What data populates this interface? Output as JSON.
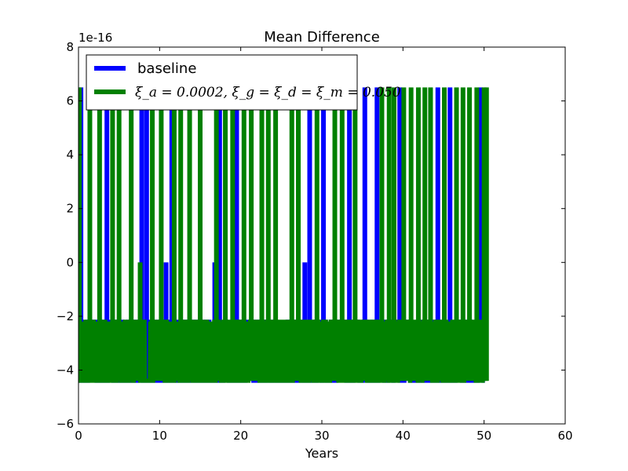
{
  "chart_data": {
    "type": "line",
    "title": "Mean Difference",
    "xlabel": "Years",
    "ylabel": "",
    "y_scale_label": "1e-16",
    "xlim": [
      0,
      60
    ],
    "ylim": [
      -6,
      8
    ],
    "x_ticks": [
      "0",
      "10",
      "20",
      "30",
      "40",
      "50",
      "60"
    ],
    "y_ticks": [
      "−6",
      "−4",
      "−2",
      "0",
      "2",
      "4",
      "6",
      "8"
    ],
    "grid": false,
    "legend_position": "top-left",
    "levels_scaled_1e-16": [
      -4.44,
      -2.22,
      0,
      6.66
    ],
    "series": [
      {
        "name": "baseline",
        "color": "#0000ff",
        "x_range": [
          0,
          50.1
        ],
        "dominant_range": [
          -4.4,
          -2.2
        ],
        "spikes": [
          {
            "x": 0.3,
            "y": 6.5
          },
          {
            "x": 3.5,
            "y": 6.5
          },
          {
            "x": 7.8,
            "y": 6.5
          },
          {
            "x": 8.4,
            "y": 6.5
          },
          {
            "x": 10.8,
            "y": 0
          },
          {
            "x": 11.5,
            "y": 6.5
          },
          {
            "x": 16.8,
            "y": 0
          },
          {
            "x": 17.4,
            "y": 6.5
          },
          {
            "x": 19.5,
            "y": 6.5
          },
          {
            "x": 25.3,
            "y": -4.2
          },
          {
            "x": 27.9,
            "y": 0
          },
          {
            "x": 28.5,
            "y": 6.5
          },
          {
            "x": 30.2,
            "y": 6.5
          },
          {
            "x": 33.4,
            "y": 6.5
          },
          {
            "x": 35.3,
            "y": 6.5
          },
          {
            "x": 35.9,
            "y": -4.2
          },
          {
            "x": 36.8,
            "y": 6.5
          },
          {
            "x": 39.6,
            "y": 6.5
          },
          {
            "x": 44.3,
            "y": 6.5
          },
          {
            "x": 45.8,
            "y": 6.5
          },
          {
            "x": 49.6,
            "y": 6.5
          }
        ]
      },
      {
        "name": "ξ_a = 0.0002, ξ_g = ξ_d = ξ_m = 0.050",
        "color": "#008000",
        "x_range": [
          0,
          50.3
        ],
        "dominant_range": [
          -4.4,
          -2.2
        ],
        "spikes": [
          {
            "x": 0.1,
            "y": 6.5
          },
          {
            "x": 1.4,
            "y": 6.5
          },
          {
            "x": 2.6,
            "y": 6.5
          },
          {
            "x": 4.2,
            "y": 6.5
          },
          {
            "x": 5.0,
            "y": 6.5
          },
          {
            "x": 6.5,
            "y": 6.5
          },
          {
            "x": 7.6,
            "y": 0
          },
          {
            "x": 9.1,
            "y": 6.5
          },
          {
            "x": 10.2,
            "y": 6.5
          },
          {
            "x": 11.8,
            "y": 6.5
          },
          {
            "x": 12.6,
            "y": 6.5
          },
          {
            "x": 13.7,
            "y": 6.5
          },
          {
            "x": 15.0,
            "y": 6.5
          },
          {
            "x": 17.0,
            "y": 6.5
          },
          {
            "x": 18.1,
            "y": 6.5
          },
          {
            "x": 19.0,
            "y": 6.5
          },
          {
            "x": 20.4,
            "y": 6.5
          },
          {
            "x": 21.3,
            "y": 6.5
          },
          {
            "x": 22.6,
            "y": 6.5
          },
          {
            "x": 23.4,
            "y": 6.5
          },
          {
            "x": 24.3,
            "y": 6.5
          },
          {
            "x": 26.3,
            "y": 6.5
          },
          {
            "x": 27.1,
            "y": 6.5
          },
          {
            "x": 29.4,
            "y": 6.5
          },
          {
            "x": 31.6,
            "y": 6.5
          },
          {
            "x": 32.5,
            "y": 6.5
          },
          {
            "x": 34.1,
            "y": 6.5
          },
          {
            "x": 37.4,
            "y": 6.5
          },
          {
            "x": 38.3,
            "y": 6.5
          },
          {
            "x": 38.9,
            "y": 6.5
          },
          {
            "x": 40.1,
            "y": 6.5
          },
          {
            "x": 41.0,
            "y": 6.5
          },
          {
            "x": 41.9,
            "y": 6.5
          },
          {
            "x": 42.7,
            "y": 6.5
          },
          {
            "x": 43.4,
            "y": 6.5
          },
          {
            "x": 45.1,
            "y": 6.5
          },
          {
            "x": 46.6,
            "y": 6.5
          },
          {
            "x": 47.4,
            "y": 6.5
          },
          {
            "x": 48.2,
            "y": 6.5
          },
          {
            "x": 49.1,
            "y": 6.5
          },
          {
            "x": 50.0,
            "y": 6.5
          },
          {
            "x": 50.3,
            "y": 6.5
          }
        ]
      }
    ]
  }
}
